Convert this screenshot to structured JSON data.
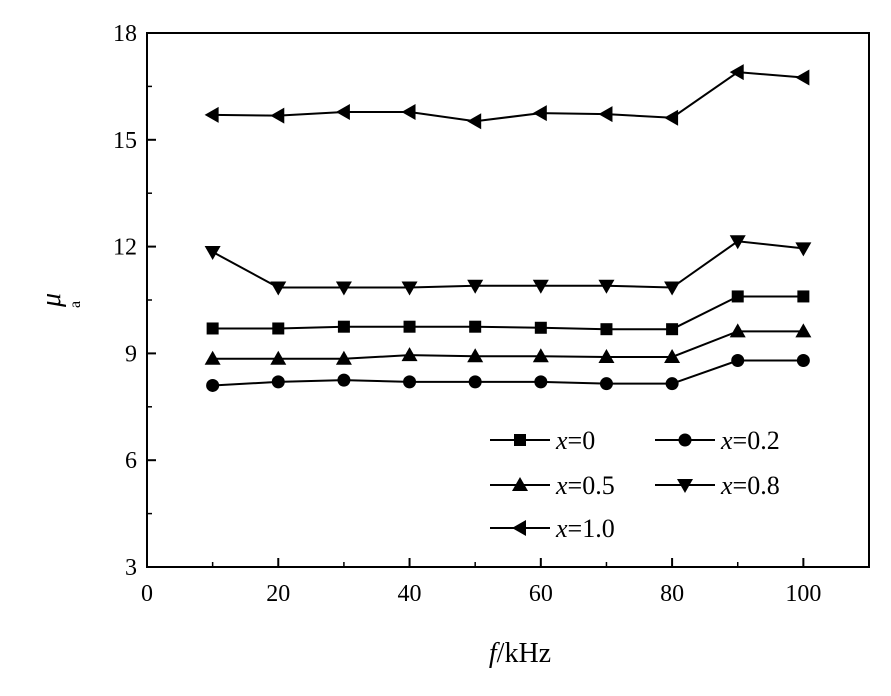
{
  "chart_data": {
    "type": "line",
    "xlabel": {
      "italic": "f",
      "rest": "/kHz"
    },
    "ylabel": {
      "main": "μ",
      "sub": "a"
    },
    "xlim": [
      0,
      110
    ],
    "ylim": [
      3,
      18
    ],
    "xticks": [
      0,
      20,
      40,
      60,
      80,
      100
    ],
    "yticks": [
      3,
      6,
      9,
      12,
      15,
      18
    ],
    "grid": false,
    "legend_position": "lower-right",
    "x": [
      10,
      20,
      30,
      40,
      50,
      60,
      70,
      80,
      90,
      100
    ],
    "series": [
      {
        "name": "x=0",
        "label_var": "x",
        "label_val": "=0",
        "marker": "square",
        "values": [
          9.7,
          9.7,
          9.75,
          9.75,
          9.75,
          9.72,
          9.68,
          9.68,
          10.6,
          10.6
        ]
      },
      {
        "name": "x=0.2",
        "label_var": "x",
        "label_val": "=0.2",
        "marker": "circle",
        "values": [
          8.1,
          8.2,
          8.25,
          8.2,
          8.2,
          8.2,
          8.15,
          8.15,
          8.8,
          8.8
        ]
      },
      {
        "name": "x=0.5",
        "label_var": "x",
        "label_val": "=0.5",
        "marker": "triangle-up",
        "values": [
          8.85,
          8.85,
          8.85,
          8.95,
          8.92,
          8.92,
          8.9,
          8.9,
          9.62,
          9.62
        ]
      },
      {
        "name": "x=0.8",
        "label_var": "x",
        "label_val": "=0.8",
        "marker": "triangle-down",
        "values": [
          11.85,
          10.85,
          10.85,
          10.85,
          10.9,
          10.9,
          10.9,
          10.85,
          12.15,
          11.95
        ]
      },
      {
        "name": "x=1.0",
        "label_var": "x",
        "label_val": "=1.0",
        "marker": "triangle-left",
        "values": [
          15.7,
          15.68,
          15.78,
          15.78,
          15.52,
          15.75,
          15.72,
          15.62,
          16.9,
          16.75
        ]
      }
    ]
  }
}
